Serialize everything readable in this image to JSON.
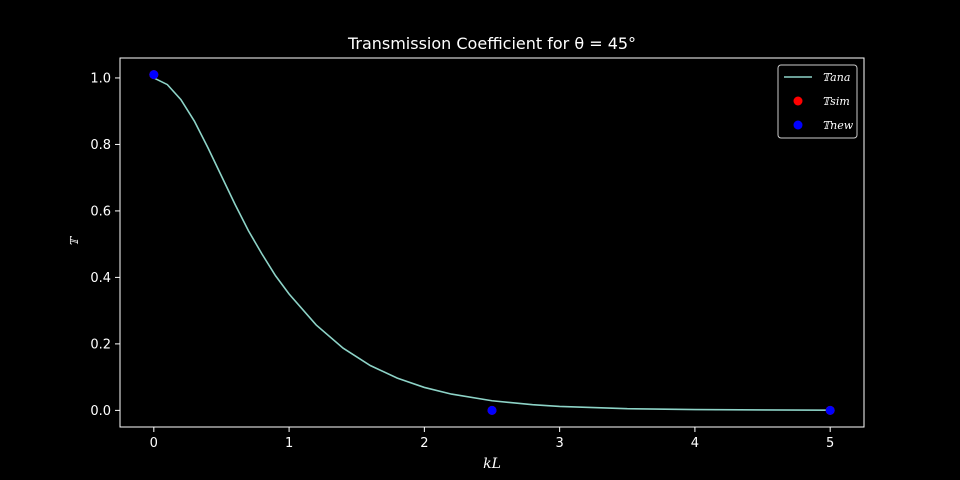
{
  "chart_data": {
    "type": "line",
    "title": "Transmission Coefficient for θ = 45°",
    "xlabel": "kL",
    "ylabel": "𝕋",
    "xlim": [
      -0.25,
      5.25
    ],
    "ylim": [
      -0.05,
      1.06
    ],
    "xticks": [
      0,
      1,
      2,
      3,
      4,
      5
    ],
    "xtick_labels": [
      "0",
      "1",
      "2",
      "3",
      "4",
      "5"
    ],
    "yticks": [
      0.0,
      0.2,
      0.4,
      0.6,
      0.8,
      1.0
    ],
    "ytick_labels": [
      "0.0",
      "0.2",
      "0.4",
      "0.6",
      "0.8",
      "1.0"
    ],
    "grid": false,
    "legend_position": "top-right",
    "series": [
      {
        "name": "𝕋ana",
        "kind": "line",
        "color": "#8dd3c7",
        "x": [
          0.0,
          0.1,
          0.2,
          0.3,
          0.4,
          0.5,
          0.6,
          0.7,
          0.8,
          0.9,
          1.0,
          1.2,
          1.4,
          1.6,
          1.8,
          2.0,
          2.2,
          2.5,
          2.8,
          3.0,
          3.5,
          4.0,
          4.5,
          5.0
        ],
        "y": [
          1.0,
          0.98,
          0.935,
          0.87,
          0.79,
          0.705,
          0.62,
          0.54,
          0.47,
          0.405,
          0.35,
          0.257,
          0.187,
          0.135,
          0.097,
          0.069,
          0.049,
          0.029,
          0.017,
          0.012,
          0.005,
          0.0025,
          0.0012,
          0.0006
        ]
      },
      {
        "name": "𝕋sim",
        "kind": "scatter",
        "color": "#ff0000",
        "x": [
          0,
          2.5,
          5
        ],
        "y": [
          1.01,
          0.0,
          0.0
        ]
      },
      {
        "name": "𝕋new",
        "kind": "scatter",
        "color": "#0000ff",
        "x": [
          0,
          2.5,
          5
        ],
        "y": [
          1.01,
          0.0,
          0.0
        ]
      }
    ]
  }
}
